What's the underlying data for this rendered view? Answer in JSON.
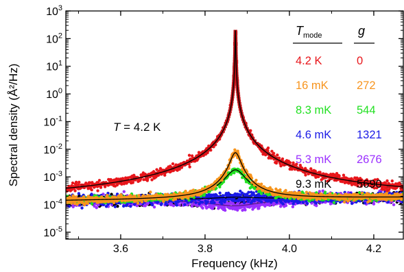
{
  "chart_data": {
    "type": "scatter",
    "xlabel": "Frequency (kHz)",
    "ylabel": "Spectral density (Å²/Hz)",
    "xlim": [
      3.47,
      4.27
    ],
    "ylim_log10": [
      -5.25,
      3.0
    ],
    "yscale": "log",
    "x_ticks": [
      "3.6",
      "3.8",
      "4.0",
      "4.2"
    ],
    "x_tick_values": [
      3.6,
      3.8,
      4.0,
      4.2
    ],
    "y_ticks": [
      {
        "base": "10",
        "exp": "-5",
        "log": -5
      },
      {
        "base": "10",
        "exp": "-4",
        "log": -4
      },
      {
        "base": "10",
        "exp": "-3",
        "log": -3
      },
      {
        "base": "10",
        "exp": "-2",
        "log": -2
      },
      {
        "base": "10",
        "exp": "-1",
        "log": -1
      },
      {
        "base": "10",
        "exp": "0",
        "log": 0
      },
      {
        "base": "10",
        "exp": "1",
        "log": 1
      },
      {
        "base": "10",
        "exp": "2",
        "log": 2
      },
      {
        "base": "10",
        "exp": "3",
        "log": 3
      }
    ],
    "annotation": {
      "italic": "T",
      "rest": " = 4.2 K"
    },
    "legend_header": {
      "t_main": "T",
      "t_sub": "mode",
      "g": "g"
    },
    "background_level": 0.00016,
    "resonance_center": 3.872,
    "series": [
      {
        "t_mode": "4.2 K",
        "g": "0",
        "color": "#e8161b",
        "peak": 200,
        "width": 0.00045,
        "sign": 1
      },
      {
        "t_mode": "16 mK",
        "g": "272",
        "color": "#f7941d",
        "peak": 0.0075,
        "width": 0.0115,
        "sign": 1
      },
      {
        "t_mode": "8.3 mK",
        "g": "544",
        "color": "#22e022",
        "peak": 0.0018,
        "width": 0.022,
        "sign": 1
      },
      {
        "t_mode": "4.6 mK",
        "g": "1321",
        "color": "#1a1ae6",
        "peak": 0.000185,
        "width": 0.06,
        "sign": 1
      },
      {
        "t_mode": "5.3 mK",
        "g": "2676",
        "color": "#9b30ff",
        "peak": 9e-05,
        "width": 0.09,
        "sign": -1
      },
      {
        "t_mode": "9.3 mK",
        "g": "5690",
        "color": "#000000",
        "peak": 0.000142,
        "width": 0.1,
        "sign": -1
      }
    ]
  }
}
